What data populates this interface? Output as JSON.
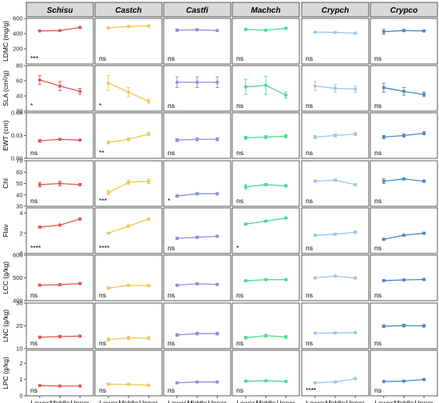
{
  "chart_data": {
    "type": "line",
    "x_categories": [
      "Lower",
      "Middle",
      "Upper"
    ],
    "species": [
      {
        "name": "Schisu",
        "color": "#e05a55"
      },
      {
        "name": "Castch",
        "color": "#f2c84e"
      },
      {
        "name": "Castfi",
        "color": "#8e8fe0"
      },
      {
        "name": "Machch",
        "color": "#4fd890"
      },
      {
        "name": "Crypch",
        "color": "#9cc6ea"
      },
      {
        "name": "Crypco",
        "color": "#4a88c6"
      }
    ],
    "traits": [
      {
        "ylabel": "LDMC (mg/g)",
        "ylim": [
          0,
          600
        ],
        "ticks": [
          {
            "value": 200,
            "label": "200"
          },
          {
            "value": 400,
            "label": "400"
          },
          {
            "value": 600,
            "label": "600"
          }
        ],
        "panels": [
          {
            "values": [
              435,
              440,
              480
            ],
            "errors": [
              8,
              8,
              10
            ],
            "sig": "***"
          },
          {
            "values": [
              475,
              495,
              500
            ],
            "errors": [
              10,
              8,
              8
            ],
            "sig": "ns"
          },
          {
            "values": [
              445,
              450,
              440
            ],
            "errors": [
              15,
              10,
              12
            ],
            "sig": "ns"
          },
          {
            "values": [
              455,
              445,
              470
            ],
            "errors": [
              10,
              12,
              12
            ],
            "sig": "ns"
          },
          {
            "values": [
              420,
              415,
              405
            ],
            "errors": [
              10,
              10,
              10
            ],
            "sig": "ns"
          },
          {
            "values": [
              425,
              440,
              435
            ],
            "errors": [
              30,
              15,
              12
            ],
            "sig": "ns"
          }
        ]
      },
      {
        "ylabel": "SLA (cm²/g)",
        "ylim": [
          20,
          80
        ],
        "ticks": [
          {
            "value": 20,
            "label": "20"
          },
          {
            "value": 40,
            "label": "40"
          },
          {
            "value": 60,
            "label": "60"
          },
          {
            "value": 80,
            "label": "80"
          }
        ],
        "panels": [
          {
            "values": [
              61,
              53,
              46
            ],
            "errors": [
              6,
              6,
              4
            ],
            "sig": "*"
          },
          {
            "values": [
              57,
              45,
              33
            ],
            "errors": [
              10,
              6,
              3
            ],
            "sig": "*"
          },
          {
            "values": [
              58,
              58,
              58
            ],
            "errors": [
              7,
              7,
              7
            ],
            "sig": "ns"
          },
          {
            "values": [
              52,
              54,
              41
            ],
            "errors": [
              10,
              12,
              4
            ],
            "sig": "ns"
          },
          {
            "values": [
              53,
              50,
              49
            ],
            "errors": [
              6,
              5,
              4
            ],
            "sig": "ns"
          },
          {
            "values": [
              51,
              46,
              42
            ],
            "errors": [
              6,
              5,
              3
            ],
            "sig": "ns"
          }
        ]
      },
      {
        "ylabel": "EWT (cm)",
        "ylim": [
          0,
          0.06
        ],
        "ticks": [
          {
            "value": 0,
            "label": "0.00"
          },
          {
            "value": 0.03,
            "label": "0.03"
          },
          {
            "value": 0.06,
            "label": "0.06"
          }
        ],
        "panels": [
          {
            "values": [
              0.023,
              0.025,
              0.024
            ],
            "errors": [
              0.002,
              0.001,
              0.001
            ],
            "sig": "ns"
          },
          {
            "values": [
              0.021,
              0.025,
              0.032
            ],
            "errors": [
              0.002,
              0.002,
              0.002
            ],
            "sig": "**"
          },
          {
            "values": [
              0.024,
              0.025,
              0.025
            ],
            "errors": [
              0.002,
              0.002,
              0.002
            ],
            "sig": "ns"
          },
          {
            "values": [
              0.027,
              0.028,
              0.029
            ],
            "errors": [
              0.002,
              0.002,
              0.002
            ],
            "sig": "ns"
          },
          {
            "values": [
              0.028,
              0.03,
              0.032
            ],
            "errors": [
              0.002,
              0.002,
              0.002
            ],
            "sig": "ns"
          },
          {
            "values": [
              0.028,
              0.03,
              0.033
            ],
            "errors": [
              0.002,
              0.002,
              0.002
            ],
            "sig": "ns"
          }
        ]
      },
      {
        "ylabel": "Chl",
        "ylim": [
          30,
          70
        ],
        "ticks": [
          {
            "value": 30,
            "label": "30"
          },
          {
            "value": 40,
            "label": "40"
          },
          {
            "value": 50,
            "label": "50"
          },
          {
            "value": 60,
            "label": "60"
          },
          {
            "value": 70,
            "label": "70"
          }
        ],
        "panels": [
          {
            "values": [
              49,
              50,
              49
            ],
            "errors": [
              2,
              2,
              1
            ],
            "sig": "ns"
          },
          {
            "values": [
              42,
              51,
              52
            ],
            "errors": [
              2,
              2,
              2
            ],
            "sig": "***"
          },
          {
            "values": [
              39,
              41,
              41
            ],
            "errors": [
              1,
              1,
              1
            ],
            "sig": "*"
          },
          {
            "values": [
              47,
              49,
              48
            ],
            "errors": [
              2,
              1,
              1
            ],
            "sig": "ns"
          },
          {
            "values": [
              52,
              53,
              49
            ],
            "errors": [
              1,
              1,
              1
            ],
            "sig": "ns"
          },
          {
            "values": [
              52,
              54,
              52
            ],
            "errors": [
              2,
              1,
              1
            ],
            "sig": "ns"
          }
        ]
      },
      {
        "ylabel": "Flav",
        "ylim": [
          0,
          4.5
        ],
        "ticks": [
          {
            "value": 0,
            "label": "0"
          },
          {
            "value": 2,
            "label": "2"
          },
          {
            "value": 4,
            "label": "4"
          }
        ],
        "panels": [
          {
            "values": [
              2.6,
              2.8,
              3.4
            ],
            "errors": [
              0.1,
              0.1,
              0.1
            ],
            "sig": "****"
          },
          {
            "values": [
              2.0,
              2.7,
              3.4
            ],
            "errors": [
              0.1,
              0.1,
              0.1
            ],
            "sig": "****"
          },
          {
            "values": [
              1.5,
              1.6,
              1.7
            ],
            "errors": [
              0.1,
              0.1,
              0.1
            ],
            "sig": "ns"
          },
          {
            "values": [
              2.9,
              3.2,
              3.5
            ],
            "errors": [
              0.1,
              0.1,
              0.1
            ],
            "sig": "*"
          },
          {
            "values": [
              1.8,
              1.9,
              2.1
            ],
            "errors": [
              0.1,
              0.1,
              0.1
            ],
            "sig": "ns"
          },
          {
            "values": [
              1.4,
              1.8,
              2.0
            ],
            "errors": [
              0.1,
              0.1,
              0.1
            ],
            "sig": "ns"
          }
        ]
      },
      {
        "ylabel": "LCC (g/kg)",
        "ylim": [
          400,
          600
        ],
        "ticks": [
          {
            "value": 400,
            "label": "400"
          },
          {
            "value": 500,
            "label": "500"
          },
          {
            "value": 600,
            "label": "600"
          }
        ],
        "panels": [
          {
            "values": [
              468,
              470,
              475
            ],
            "errors": [
              4,
              4,
              4
            ],
            "sig": "ns"
          },
          {
            "values": [
              455,
              467,
              466
            ],
            "errors": [
              4,
              4,
              4
            ],
            "sig": "ns"
          },
          {
            "values": [
              468,
              474,
              471
            ],
            "errors": [
              4,
              5,
              4
            ],
            "sig": "ns"
          },
          {
            "values": [
              487,
              492,
              492
            ],
            "errors": [
              4,
              4,
              4
            ],
            "sig": "ns"
          },
          {
            "values": [
              500,
              508,
              499
            ],
            "errors": [
              4,
              4,
              4
            ],
            "sig": "ns"
          },
          {
            "values": [
              488,
              491,
              493
            ],
            "errors": [
              4,
              4,
              4
            ],
            "sig": "ns"
          }
        ]
      },
      {
        "ylabel": "LNC (g/kg)",
        "ylim": [
          10,
          30
        ],
        "ticks": [
          {
            "value": 10,
            "label": "10"
          },
          {
            "value": 20,
            "label": "20"
          },
          {
            "value": 30,
            "label": "30"
          }
        ],
        "panels": [
          {
            "values": [
              15.0,
              15.3,
              15.5
            ],
            "errors": [
              0.5,
              0.5,
              0.5
            ],
            "sig": "ns"
          },
          {
            "values": [
              14.0,
              14.7,
              14.6
            ],
            "errors": [
              0.7,
              0.7,
              0.7
            ],
            "sig": "ns"
          },
          {
            "values": [
              16.0,
              16.6,
              16.6
            ],
            "errors": [
              0.6,
              0.6,
              0.6
            ],
            "sig": "ns"
          },
          {
            "values": [
              14.8,
              15.7,
              15.1
            ],
            "errors": [
              0.6,
              0.6,
              0.6
            ],
            "sig": "ns"
          },
          {
            "values": [
              16.8,
              16.9,
              17.0
            ],
            "errors": [
              0.4,
              0.4,
              0.4
            ],
            "sig": "ns"
          },
          {
            "values": [
              19.8,
              20.1,
              20.0
            ],
            "errors": [
              0.6,
              0.6,
              0.6
            ],
            "sig": "ns"
          }
        ]
      },
      {
        "ylabel": "LPC (g/kg)",
        "ylim": [
          0,
          2.8
        ],
        "ticks": [
          {
            "value": 0,
            "label": "0"
          },
          {
            "value": 1,
            "label": "1"
          },
          {
            "value": 2,
            "label": "2"
          }
        ],
        "panels": [
          {
            "values": [
              0.63,
              0.6,
              0.6
            ],
            "errors": [
              0.05,
              0.05,
              0.05
            ],
            "sig": "ns"
          },
          {
            "values": [
              0.72,
              0.7,
              0.65
            ],
            "errors": [
              0.05,
              0.05,
              0.05
            ],
            "sig": "ns"
          },
          {
            "values": [
              0.8,
              0.85,
              0.85
            ],
            "errors": [
              0.05,
              0.05,
              0.05
            ],
            "sig": "ns"
          },
          {
            "values": [
              0.9,
              0.92,
              0.88
            ],
            "errors": [
              0.05,
              0.05,
              0.05
            ],
            "sig": "ns"
          },
          {
            "values": [
              0.8,
              0.85,
              1.05
            ],
            "errors": [
              0.05,
              0.05,
              0.05
            ],
            "sig": "****"
          },
          {
            "values": [
              0.88,
              0.9,
              1.0
            ],
            "errors": [
              0.05,
              0.05,
              0.05
            ],
            "sig": "ns"
          }
        ]
      }
    ]
  }
}
